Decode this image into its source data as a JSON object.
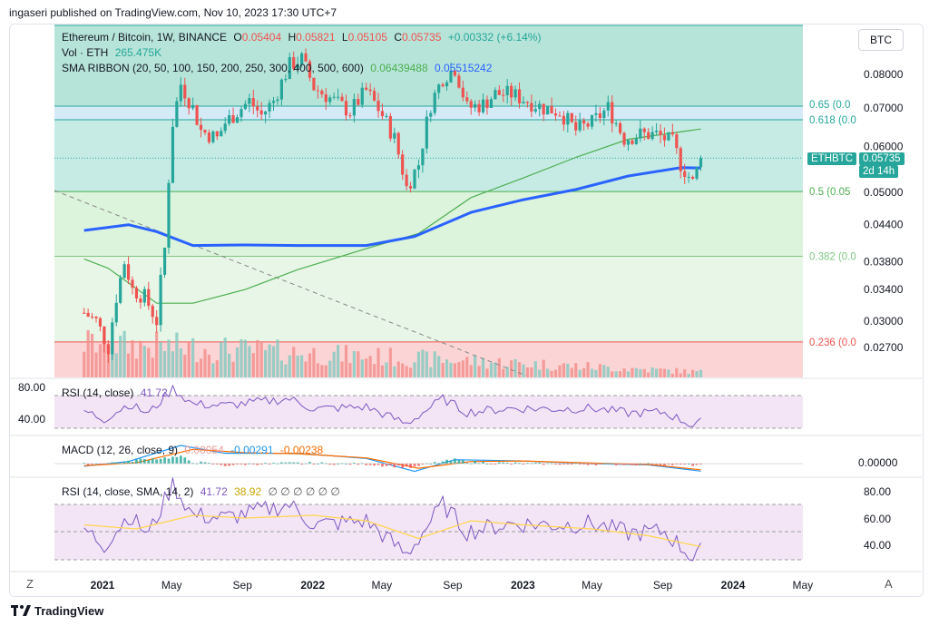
{
  "publisher": "ingaseri published on TradingView.com, Nov 10, 2023 17:30 UTC+7",
  "currency_button": "BTC",
  "brand": "TradingView",
  "colors": {
    "up": "#26a69a",
    "down": "#ef5350",
    "sma_long": "#2962ff",
    "sma_short": "#4caf50",
    "rsi": "#7e57c2",
    "rsi_sma": "#ffd54f",
    "macd": "#2196f3",
    "signal": "#ff6d00"
  },
  "legend": {
    "title": "Ethereum / Bitcoin, 1W, BINANCE",
    "o_label": "O",
    "o": "0.05404",
    "h_label": "H",
    "h": "0.05821",
    "l_label": "L",
    "l": "0.05105",
    "c_label": "C",
    "c": "0.05735",
    "change": "+0.00332 (+6.14%)",
    "vol_label": "Vol · ETH",
    "vol": "265.475K",
    "sma_label": "SMA RIBBON (20, 50, 100, 150, 200, 250, 300, 400, 500, 600)",
    "sma_v1": "0.06439488",
    "sma_v2": "0.05515242"
  },
  "price_tag": {
    "symbol": "ETHBTC",
    "price": "0.05735",
    "countdown": "2d 14h"
  },
  "rsi1": {
    "label": "RSI (14, close)",
    "value": "41.72",
    "ticks": [
      "80.00",
      "40.00"
    ]
  },
  "macd": {
    "label": "MACD (12, 26, close, 9)",
    "v1": "0.00054",
    "v2": "-0.00291",
    "v3": "-0.00238",
    "tick": "0.00000"
  },
  "rsi2": {
    "label": "RSI (14, close, SMA, 14, 2)",
    "v1": "41.72",
    "v2": "38.92",
    "extras": "∅ ∅ ∅ ∅ ∅ ∅",
    "ticks": [
      "80.00",
      "60.00",
      "40.00"
    ]
  },
  "nav": {
    "left": "Z",
    "right": "A"
  },
  "chart_data": {
    "type": "candlestick",
    "symbol": "Ethereum / Bitcoin",
    "interval": "1W",
    "exchange": "BINANCE",
    "price_scale": "log",
    "price_ticks": [
      "0.08000",
      "0.07000",
      "0.06000",
      "0.05000",
      "0.04400",
      "0.03800",
      "0.03400",
      "0.03000",
      "0.02700"
    ],
    "time_ticks": [
      "2021",
      "May",
      "Sep",
      "2022",
      "May",
      "Sep",
      "2023",
      "May",
      "Sep",
      "2024",
      "May"
    ],
    "fib_levels": [
      {
        "label": "0.65 (0.0",
        "price": 0.0705
      },
      {
        "label": "0.618 (0.0",
        "price": 0.0668
      },
      {
        "label": "0.5 (0.05",
        "price": 0.0502
      },
      {
        "label": "0.382 (0.0",
        "price": 0.0388
      },
      {
        "label": "0.236 (0.0",
        "price": 0.0276
      }
    ],
    "price_path": [
      [
        "2020-11-30",
        0.031
      ],
      [
        "2020-12-21",
        0.03
      ],
      [
        "2021-01-11",
        0.027
      ],
      [
        "2021-01-25",
        0.033
      ],
      [
        "2021-02-08",
        0.038
      ],
      [
        "2021-02-22",
        0.034
      ],
      [
        "2021-03-15",
        0.033
      ],
      [
        "2021-04-05",
        0.03
      ],
      [
        "2021-04-19",
        0.04
      ],
      [
        "2021-05-03",
        0.066
      ],
      [
        "2021-05-17",
        0.077
      ],
      [
        "2021-06-07",
        0.07
      ],
      [
        "2021-06-21",
        0.064
      ],
      [
        "2021-07-19",
        0.062
      ],
      [
        "2021-08-02",
        0.066
      ],
      [
        "2021-08-23",
        0.069
      ],
      [
        "2021-09-13",
        0.072
      ],
      [
        "2021-10-04",
        0.068
      ],
      [
        "2021-10-25",
        0.072
      ],
      [
        "2021-11-22",
        0.083
      ],
      [
        "2021-12-13",
        0.085
      ],
      [
        "2022-01-03",
        0.076
      ],
      [
        "2022-02-07",
        0.072
      ],
      [
        "2022-03-07",
        0.069
      ],
      [
        "2022-04-04",
        0.075
      ],
      [
        "2022-05-02",
        0.068
      ],
      [
        "2022-05-23",
        0.062
      ],
      [
        "2022-06-13",
        0.051
      ],
      [
        "2022-07-04",
        0.056
      ],
      [
        "2022-07-25",
        0.071
      ],
      [
        "2022-08-15",
        0.079
      ],
      [
        "2022-09-05",
        0.082
      ],
      [
        "2022-09-26",
        0.07
      ],
      [
        "2022-10-24",
        0.071
      ],
      [
        "2022-11-14",
        0.074
      ],
      [
        "2022-12-12",
        0.074
      ],
      [
        "2023-01-09",
        0.072
      ],
      [
        "2023-02-06",
        0.07
      ],
      [
        "2023-03-06",
        0.069
      ],
      [
        "2023-04-03",
        0.064
      ],
      [
        "2023-05-01",
        0.066
      ],
      [
        "2023-05-29",
        0.07
      ],
      [
        "2023-06-26",
        0.062
      ],
      [
        "2023-07-24",
        0.063
      ],
      [
        "2023-08-21",
        0.063
      ],
      [
        "2023-09-18",
        0.061
      ],
      [
        "2023-10-02",
        0.056
      ],
      [
        "2023-10-23",
        0.052
      ],
      [
        "2023-11-06",
        0.05735
      ]
    ],
    "sma_long": [
      [
        "2020-11-30",
        0.043
      ],
      [
        "2021-02-15",
        0.044
      ],
      [
        "2021-04-05",
        0.0428
      ],
      [
        "2021-06-07",
        0.0405
      ],
      [
        "2021-09-06",
        0.0406
      ],
      [
        "2021-12-06",
        0.0405
      ],
      [
        "2022-04-04",
        0.0405
      ],
      [
        "2022-06-27",
        0.042
      ],
      [
        "2022-10-03",
        0.0462
      ],
      [
        "2023-01-02",
        0.0486
      ],
      [
        "2023-04-03",
        0.0506
      ],
      [
        "2023-07-03",
        0.0534
      ],
      [
        "2023-10-02",
        0.0552
      ],
      [
        "2023-11-06",
        0.05515
      ]
    ],
    "sma_short": [
      [
        "2020-11-30",
        0.0384
      ],
      [
        "2021-01-11",
        0.037
      ],
      [
        "2021-04-05",
        0.0322
      ],
      [
        "2021-06-07",
        0.0322
      ],
      [
        "2021-09-06",
        0.034
      ],
      [
        "2021-12-06",
        0.0368
      ],
      [
        "2022-04-04",
        0.04
      ],
      [
        "2022-07-04",
        0.0425
      ],
      [
        "2022-10-03",
        0.049
      ],
      [
        "2023-01-02",
        0.053
      ],
      [
        "2023-04-03",
        0.0575
      ],
      [
        "2023-07-03",
        0.0618
      ],
      [
        "2023-11-06",
        0.06439
      ]
    ],
    "rsi": [
      [
        "2020-11-30",
        52
      ],
      [
        "2021-01-04",
        40
      ],
      [
        "2021-02-15",
        62
      ],
      [
        "2021-03-22",
        48
      ],
      [
        "2021-05-03",
        85
      ],
      [
        "2021-06-07",
        62
      ],
      [
        "2021-08-02",
        60
      ],
      [
        "2021-11-22",
        70
      ],
      [
        "2022-01-03",
        55
      ],
      [
        "2022-04-04",
        58
      ],
      [
        "2022-06-13",
        33
      ],
      [
        "2022-08-15",
        70
      ],
      [
        "2022-09-26",
        50
      ],
      [
        "2022-12-12",
        56
      ],
      [
        "2023-03-06",
        55
      ],
      [
        "2023-05-01",
        56
      ],
      [
        "2023-07-03",
        49
      ],
      [
        "2023-09-04",
        50
      ],
      [
        "2023-10-23",
        31
      ],
      [
        "2023-11-06",
        41.72
      ]
    ],
    "rsi_sma": [
      [
        "2020-11-30",
        55
      ],
      [
        "2021-03-01",
        52
      ],
      [
        "2021-06-07",
        62
      ],
      [
        "2021-09-06",
        60
      ],
      [
        "2022-01-03",
        62
      ],
      [
        "2022-04-04",
        58
      ],
      [
        "2022-07-04",
        45
      ],
      [
        "2022-10-03",
        58
      ],
      [
        "2023-01-02",
        55
      ],
      [
        "2023-05-01",
        52
      ],
      [
        "2023-08-07",
        47
      ],
      [
        "2023-11-06",
        38.92
      ]
    ],
    "macd_line": [
      [
        "2020-11-30",
        -0.001
      ],
      [
        "2021-02-15",
        0.0008
      ],
      [
        "2021-05-17",
        0.007
      ],
      [
        "2021-08-02",
        0.004
      ],
      [
        "2021-12-06",
        0.004
      ],
      [
        "2022-04-04",
        0.002
      ],
      [
        "2022-06-27",
        -0.003
      ],
      [
        "2022-09-05",
        0.0015
      ],
      [
        "2023-01-02",
        0.001
      ],
      [
        "2023-05-01",
        0.0
      ],
      [
        "2023-08-07",
        -0.0005
      ],
      [
        "2023-11-06",
        -0.00291
      ]
    ],
    "signal_line": [
      [
        "2020-11-30",
        -0.0008
      ],
      [
        "2021-03-01",
        0.0003
      ],
      [
        "2021-06-07",
        0.0055
      ],
      [
        "2021-09-06",
        0.0042
      ],
      [
        "2021-12-06",
        0.0038
      ],
      [
        "2022-04-04",
        0.0022
      ],
      [
        "2022-07-04",
        -0.0018
      ],
      [
        "2022-10-03",
        0.0008
      ],
      [
        "2023-01-02",
        0.001
      ],
      [
        "2023-05-01",
        0.0002
      ],
      [
        "2023-08-07",
        -0.0003
      ],
      [
        "2023-11-06",
        -0.00238
      ]
    ]
  }
}
